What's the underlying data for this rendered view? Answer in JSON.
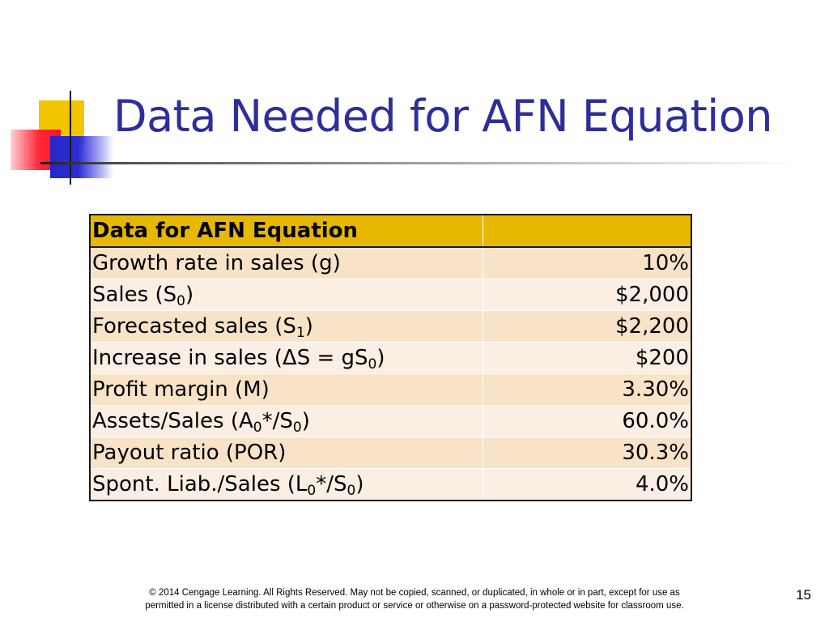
{
  "slide": {
    "title": "Data Needed for AFN Equation",
    "page_number": "15",
    "footer_line1": "© 2014 Cengage Learning. All Rights Reserved. May not be copied, scanned, or duplicated, in whole or in part, except for use as",
    "footer_line2": "permitted in a license distributed with a certain product or service or otherwise on a password-protected website for classroom use."
  },
  "table": {
    "header": {
      "label": "Data for AFN Equation",
      "value": ""
    },
    "rows": [
      {
        "label": "Growth rate in sales (g)",
        "value": "10%"
      },
      {
        "label_pre": "Sales (S",
        "sub": "0",
        "label_post": ")",
        "value": "$2,000"
      },
      {
        "label_pre": "Forecasted sales (S",
        "sub": "1",
        "label_post": ")",
        "value": "$2,200"
      },
      {
        "label_pre": "Increase in sales (ΔS = gS",
        "sub": "0",
        "label_post": ")",
        "value": "$200"
      },
      {
        "label": "Profit margin (M)",
        "value": "3.30%"
      },
      {
        "label_pre": "Assets/Sales (A",
        "sub": "0",
        "label_mid": "*/S",
        "sub2": "0",
        "label_post": ")",
        "value": "60.0%"
      },
      {
        "label": "Payout ratio (POR)",
        "value": "30.3%"
      },
      {
        "label_pre": "Spont. Liab./Sales (L",
        "sub": "0",
        "label_mid": "*/S",
        "sub2": "0",
        "label_post": ")",
        "value": "4.0%"
      }
    ]
  },
  "colors": {
    "title": "#2e2e9a",
    "header_fill": "#e8b800",
    "row_fill_odd": "#f8e3c8",
    "row_fill_even": "#fbeee3"
  }
}
